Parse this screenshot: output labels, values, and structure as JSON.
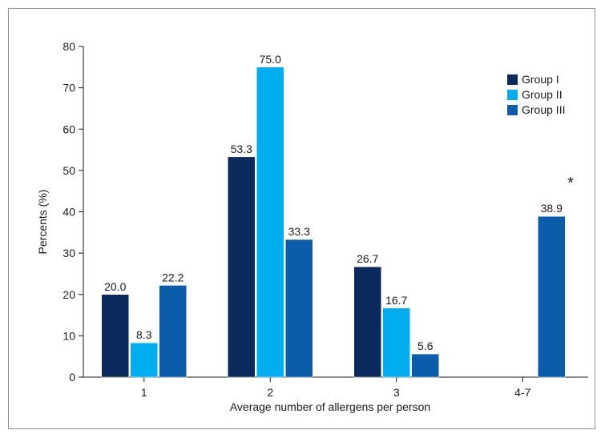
{
  "chart_data": {
    "type": "bar",
    "categories": [
      "1",
      "2",
      "3",
      "4-7"
    ],
    "series": [
      {
        "name": "Group I",
        "color": "#0a2a5e",
        "values": [
          20.0,
          53.3,
          26.7,
          null
        ]
      },
      {
        "name": "Group II",
        "color": "#00aeef",
        "values": [
          8.3,
          75.0,
          16.7,
          null
        ]
      },
      {
        "name": "Group III",
        "color": "#0b5cab",
        "values": [
          22.2,
          33.3,
          5.6,
          38.9
        ]
      }
    ],
    "data_labels": [
      [
        "20.0",
        "53.3",
        "26.7",
        ""
      ],
      [
        "8.3",
        "75.0",
        "16.7",
        ""
      ],
      [
        "22.2",
        "33.3",
        "5.6",
        "38.9"
      ]
    ],
    "title": "",
    "xlabel": "Average number of allergens per person",
    "ylabel": "Percents (%)",
    "ylim": [
      0,
      80
    ],
    "yticks": [
      "0",
      "10",
      "20",
      "30",
      "40",
      "50",
      "60",
      "70",
      "80"
    ],
    "grid": false,
    "legend_position": "top-right",
    "annotation": "*"
  }
}
